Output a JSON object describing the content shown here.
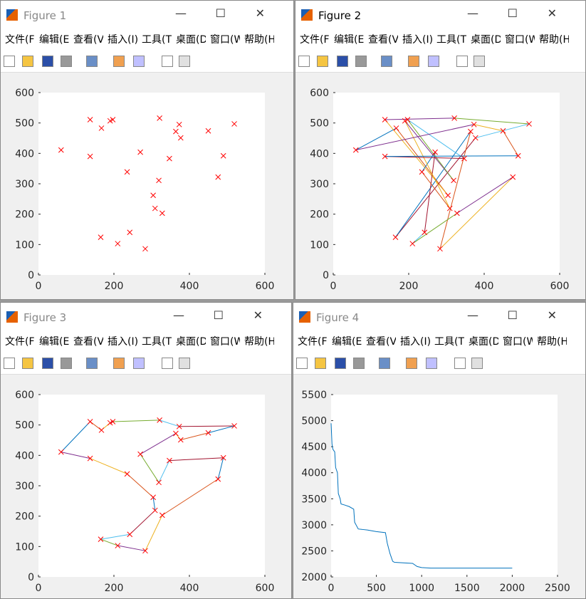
{
  "windows": [
    {
      "title": "Figure 1",
      "menu": [
        "文件(F)",
        "编辑(E)",
        "查看(V)",
        "插入(I)",
        "工具(T)",
        "桌面(D)",
        "窗口(W)",
        "帮助(H)"
      ]
    },
    {
      "title": "Figure 2",
      "menu": [
        "文件(F)",
        "编辑(E)",
        "查看(V)",
        "插入(I)",
        "工具(T)",
        "桌面(D)",
        "窗口(W)",
        "帮助(H)"
      ]
    },
    {
      "title": "Figure 3",
      "menu": [
        "文件(F)",
        "编辑(E)",
        "查看(V)",
        "插入(I)",
        "工具(T)",
        "桌面(D)",
        "窗口(W)",
        "帮助(H)"
      ]
    },
    {
      "title": "Figure 4",
      "menu": [
        "文件(F)",
        "编辑(E)",
        "查看(V)",
        "插入(I)",
        "工具(T)",
        "桌面(D)",
        "窗口(W)",
        "帮助(H)"
      ]
    }
  ],
  "chart_data": [
    {
      "type": "scatter",
      "marker_color": "#ff0000",
      "xlim": [
        0,
        600
      ],
      "ylim": [
        0,
        600
      ],
      "xticks": [
        0,
        200,
        400,
        600
      ],
      "yticks": [
        0,
        100,
        200,
        300,
        400,
        500,
        600
      ],
      "x": [
        60,
        137,
        137,
        167,
        190,
        197,
        165,
        210,
        235,
        242,
        270,
        283,
        304,
        309,
        319,
        321,
        328,
        347,
        364,
        373,
        377,
        450,
        476,
        490,
        519
      ],
      "y": [
        411,
        511,
        390,
        483,
        507,
        511,
        124,
        103,
        339,
        140,
        404,
        86,
        262,
        219,
        311,
        516,
        203,
        383,
        472,
        495,
        451,
        474,
        322,
        392,
        497
      ]
    },
    {
      "type": "route",
      "closed": true,
      "marker_color": "#ff0000",
      "colors": [
        "#0072BD",
        "#D95319",
        "#EDB120",
        "#7E2F8E",
        "#77AC30",
        "#4DBEEE",
        "#A2142F"
      ],
      "xlim": [
        0,
        600
      ],
      "ylim": [
        0,
        600
      ],
      "xticks": [
        0,
        200,
        400,
        600
      ],
      "yticks": [
        0,
        100,
        200,
        300,
        400,
        500,
        600
      ],
      "x": [
        60,
        167,
        304,
        137,
        321,
        519,
        377,
        165,
        364,
        283,
        476,
        328,
        210,
        242,
        270,
        235,
        309,
        190,
        319,
        197,
        347,
        137,
        490,
        450,
        373
      ],
      "y": [
        411,
        483,
        262,
        511,
        516,
        497,
        451,
        124,
        472,
        86,
        322,
        203,
        103,
        140,
        404,
        339,
        219,
        507,
        311,
        511,
        383,
        390,
        392,
        474,
        495
      ]
    },
    {
      "type": "route",
      "closed": true,
      "marker_color": "#ff0000",
      "colors": [
        "#0072BD",
        "#D95319",
        "#EDB120",
        "#7E2F8E",
        "#77AC30",
        "#4DBEEE",
        "#A2142F"
      ],
      "xlim": [
        0,
        600
      ],
      "ylim": [
        0,
        600
      ],
      "xticks": [
        0,
        200,
        400,
        600
      ],
      "yticks": [
        0,
        100,
        200,
        300,
        400,
        500,
        600
      ],
      "x": [
        60,
        137,
        167,
        190,
        197,
        321,
        373,
        519,
        450,
        377,
        364,
        270,
        319,
        347,
        490,
        476,
        328,
        283,
        210,
        165,
        242,
        309,
        304,
        235,
        137
      ],
      "y": [
        411,
        511,
        483,
        507,
        511,
        516,
        495,
        497,
        474,
        451,
        472,
        404,
        311,
        383,
        392,
        322,
        203,
        86,
        103,
        124,
        140,
        219,
        262,
        339,
        390
      ]
    },
    {
      "type": "line",
      "color": "#0072BD",
      "xlim": [
        0,
        2500
      ],
      "ylim": [
        2000,
        5500
      ],
      "xticks": [
        0,
        500,
        1000,
        1500,
        2000,
        2500
      ],
      "yticks": [
        2000,
        2500,
        3000,
        3500,
        4000,
        4500,
        5000,
        5500
      ],
      "x": [
        0,
        10,
        20,
        40,
        50,
        70,
        80,
        100,
        110,
        150,
        200,
        250,
        260,
        300,
        350,
        400,
        500,
        600,
        620,
        650,
        680,
        700,
        900,
        950,
        1000,
        1100,
        1500,
        2000
      ],
      "y": [
        4950,
        4550,
        4450,
        4400,
        4100,
        4000,
        3600,
        3500,
        3400,
        3380,
        3350,
        3300,
        3050,
        2920,
        2910,
        2900,
        2870,
        2850,
        2650,
        2450,
        2300,
        2280,
        2260,
        2200,
        2180,
        2170,
        2170,
        2170
      ]
    }
  ]
}
